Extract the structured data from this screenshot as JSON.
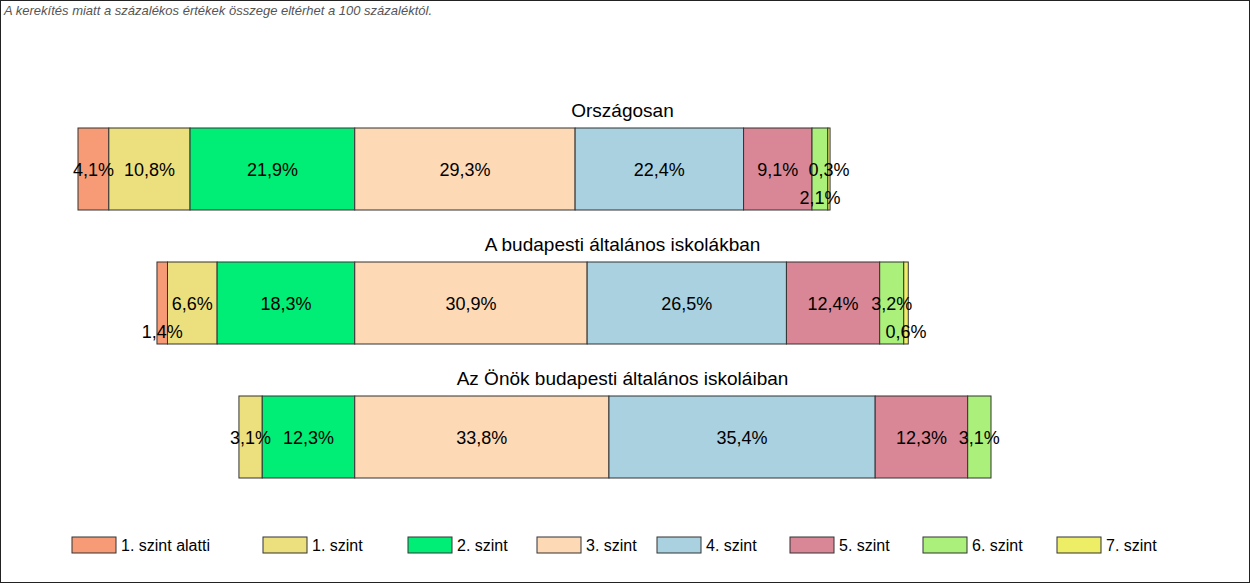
{
  "chart_data": {
    "type": "bar",
    "title": "A kerekítés miatt a százalékos értékek összege eltérhet a 100 százaléktól.",
    "orientation": "horizontal",
    "stacked": true,
    "data_labels": true,
    "tick_labels": false,
    "legend": "bottom",
    "categories": [
      "Országosan",
      "A budapesti általános iskolákban",
      "Az Önök budapesti általános iskoláiban"
    ],
    "series": [
      {
        "name": "1. szint alatti",
        "color": "#f79a76",
        "values": [
          4.1,
          1.4,
          null
        ],
        "value_labels": [
          "4,1%",
          "1,4%",
          null
        ]
      },
      {
        "name": "1. szint",
        "color": "#ece07e",
        "values": [
          10.8,
          6.6,
          3.1
        ],
        "value_labels": [
          "10,8%",
          "6,6%",
          "3,1%"
        ]
      },
      {
        "name": "2. szint",
        "color": "#00ee76",
        "values": [
          21.9,
          18.3,
          12.3
        ],
        "value_labels": [
          "21,9%",
          "18,3%",
          "12,3%"
        ]
      },
      {
        "name": "3. szint",
        "color": "#fdd9b5",
        "values": [
          29.3,
          30.9,
          33.8
        ],
        "value_labels": [
          "29,3%",
          "30,9%",
          "33,8%"
        ]
      },
      {
        "name": "4. szint",
        "color": "#a9d1e0",
        "values": [
          22.4,
          26.5,
          35.4
        ],
        "value_labels": [
          "22,4%",
          "26,5%",
          "35,4%"
        ]
      },
      {
        "name": "5. szint",
        "color": "#d98797",
        "values": [
          9.1,
          12.4,
          12.3
        ],
        "value_labels": [
          "9,1%",
          "12,4%",
          "12,3%"
        ]
      },
      {
        "name": "6. szint",
        "color": "#aaf07a",
        "values": [
          2.1,
          3.2,
          3.1
        ],
        "value_labels": [
          "2,1%",
          "3,2%",
          "3,1%"
        ]
      },
      {
        "name": "7. szint",
        "color": "#eeee66",
        "values": [
          0.3,
          0.6,
          null
        ],
        "value_labels": [
          "0,3%",
          "0,6%",
          null
        ]
      }
    ]
  }
}
